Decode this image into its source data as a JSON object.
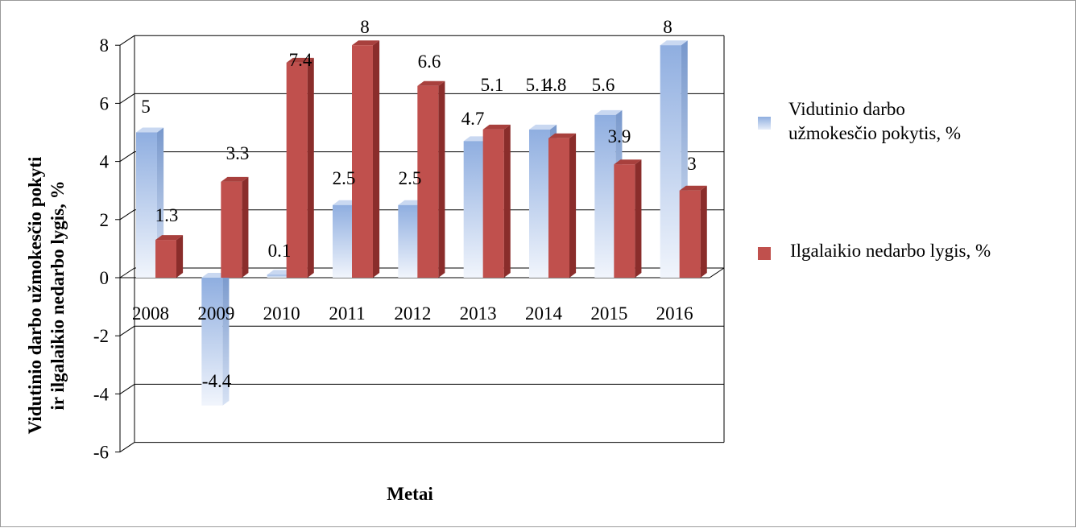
{
  "chart_data": {
    "type": "bar",
    "style": "3d-clustered-column",
    "categories": [
      "2008",
      "2009",
      "2010",
      "2011",
      "2012",
      "2013",
      "2014",
      "2015",
      "2016"
    ],
    "series": [
      {
        "name": "Vidutinio darbo užmokesčio pokytis, %",
        "values": [
          5,
          -4.4,
          0.1,
          2.5,
          2.5,
          4.7,
          5.1,
          5.6,
          8
        ],
        "labels": [
          "5",
          "-4.4",
          "0.1",
          "2.5",
          "2.5",
          "4.7",
          "5.1",
          "5.6",
          "8"
        ],
        "color": "#a8c2e8"
      },
      {
        "name": "Ilgalaikio nedarbo lygis, %",
        "values": [
          1.3,
          3.3,
          7.4,
          8,
          6.6,
          5.1,
          4.8,
          3.9,
          3
        ],
        "labels": [
          "1.3",
          "3.3",
          "7.4",
          "8",
          "6.6",
          "5.1",
          "4.8",
          "3.9",
          "3"
        ],
        "color": "#c0504d"
      }
    ],
    "ylim": [
      -6,
      8
    ],
    "yticks": [
      "-6",
      "-4",
      "-2",
      "0",
      "2",
      "4",
      "6",
      "8"
    ],
    "xlabel": "Metai",
    "ylabel_lines": [
      "Vidutinio darbo užmokesčio pokyti",
      "ir ilgalaikio nedarbo lygis, %"
    ],
    "grid": true,
    "legend_position": "right"
  }
}
